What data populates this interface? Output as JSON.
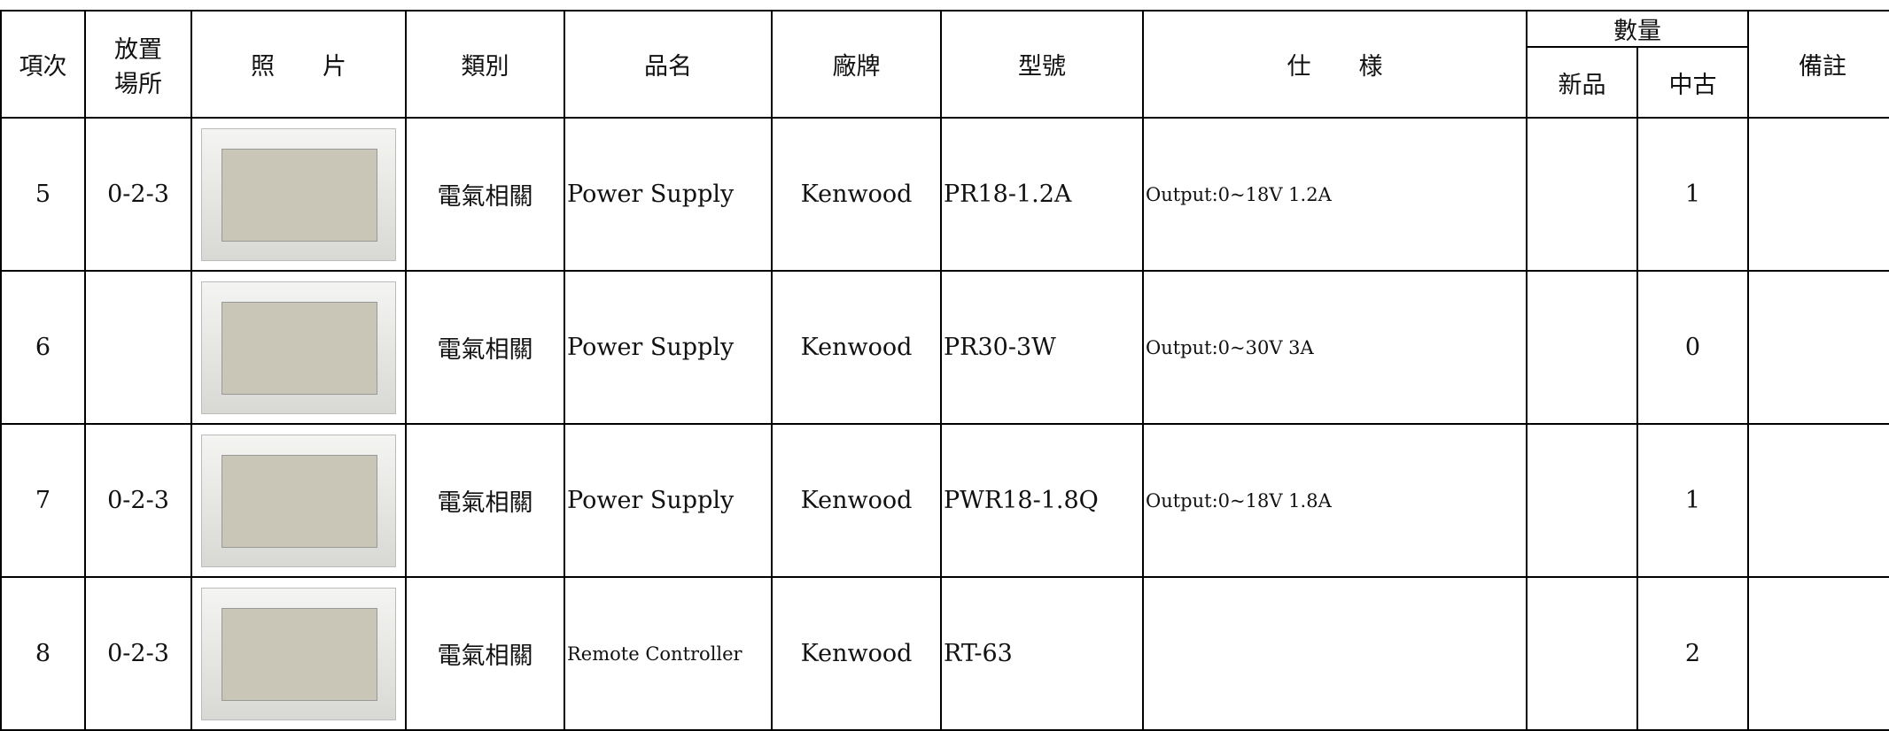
{
  "header": {
    "item": "項次",
    "location": [
      "放置",
      "場所"
    ],
    "photo": "照　　片",
    "category": "類別",
    "name": "品名",
    "brand": "廠牌",
    "model": "型號",
    "spec": "仕　　様",
    "quantity": "數量",
    "new": "新品",
    "used": "中古",
    "remarks": "備註"
  },
  "rows": [
    {
      "item": "5",
      "location": "0-2-3",
      "category": "電氣相關",
      "name": "Power Supply",
      "brand": "Kenwood",
      "model": "PR18-1.2A",
      "spec": "Output:0~18V 1.2A",
      "used": "1"
    },
    {
      "item": "6",
      "category": "電氣相關",
      "name": "Power Supply",
      "brand": "Kenwood",
      "model": "PR30-3W",
      "spec": "Output:0~30V 3A",
      "used": "0"
    },
    {
      "item": "7",
      "location": "0-2-3",
      "category": "電氣相關",
      "name": "Power Supply",
      "brand": "Kenwood",
      "model": "PWR18-1.8Q",
      "spec": "Output:0~18V 1.8A",
      "used": "1"
    },
    {
      "item": "8",
      "location": "0-2-3",
      "category": "電氣相關",
      "name": "Remote Controller",
      "brand": "Kenwood",
      "model": "RT-63",
      "used": "2"
    }
  ]
}
